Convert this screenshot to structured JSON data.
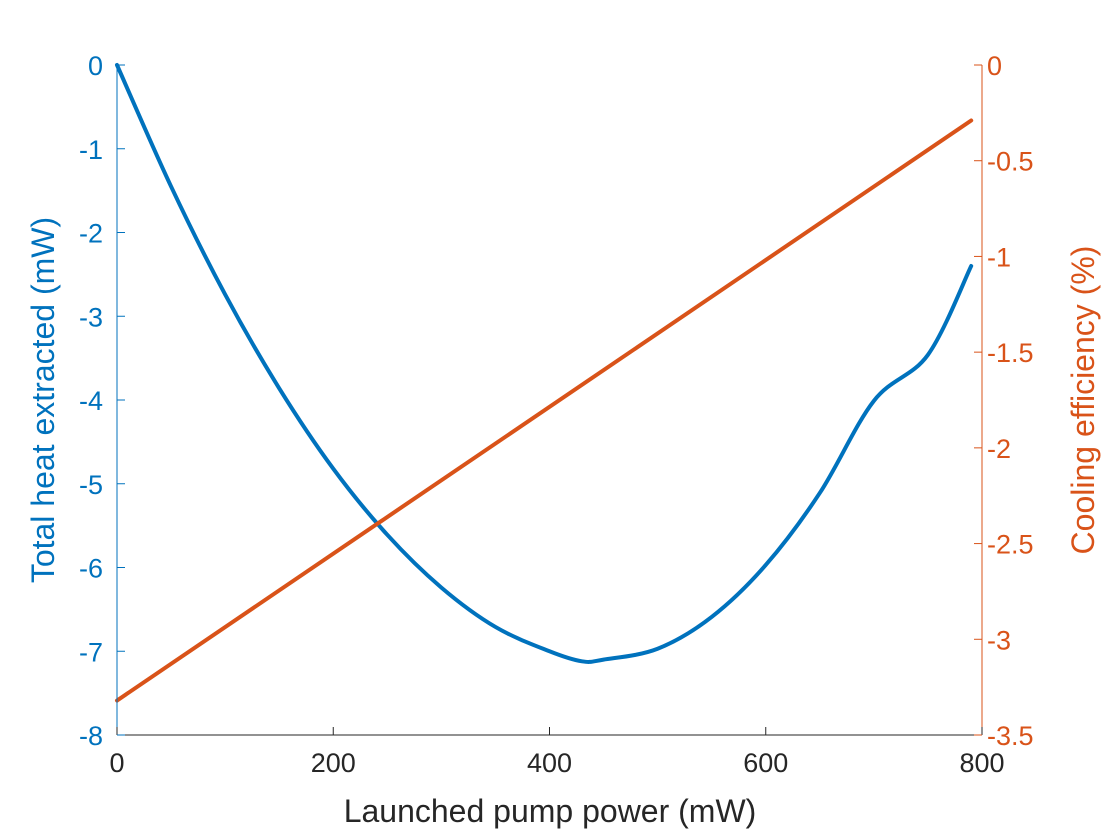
{
  "chart_data": {
    "type": "line",
    "xlabel": "Launched pump power (mW)",
    "ylabel_left": "Total heat extracted (mW)",
    "ylabel_right": "Cooling efficiency (%)",
    "xlim": [
      0,
      800
    ],
    "ylim_left": [
      -8,
      0
    ],
    "ylim_right": [
      -3.5,
      0
    ],
    "xticks": [
      0,
      200,
      400,
      600,
      800
    ],
    "yticks_left": [
      0,
      -1,
      -2,
      -3,
      -4,
      -5,
      -6,
      -7,
      -8
    ],
    "yticks_right": [
      0,
      -0.5,
      -1,
      -1.5,
      -2,
      -2.5,
      -3,
      -3.5
    ],
    "grid": false,
    "colors": {
      "left": "#0072BD",
      "right": "#D95319",
      "axis_x": "#262626"
    },
    "series": [
      {
        "axis": "left",
        "x": [
          0,
          50,
          100,
          150,
          200,
          250,
          300,
          350,
          400,
          430,
          450,
          500,
          550,
          600,
          650,
          700,
          750,
          790
        ],
        "y": [
          0,
          -1.45,
          -2.74,
          -3.86,
          -4.82,
          -5.61,
          -6.24,
          -6.71,
          -7.0,
          -7.12,
          -7.1,
          -6.97,
          -6.59,
          -5.97,
          -5.11,
          -4.01,
          -3.46,
          -2.4
        ]
      },
      {
        "axis": "right",
        "x": [
          0,
          790
        ],
        "y": [
          -3.32,
          -0.29
        ]
      }
    ]
  }
}
